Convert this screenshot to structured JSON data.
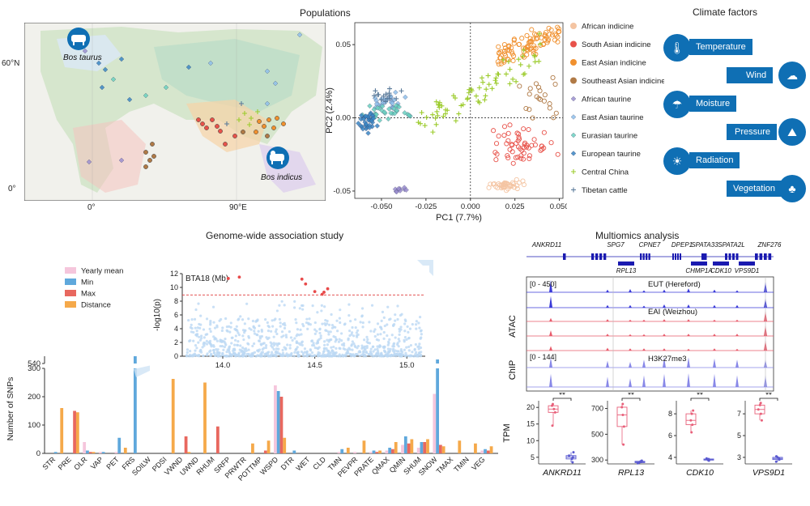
{
  "titles": {
    "populations": "Populations",
    "climate": "Climate factors",
    "gwas": "Genome-wide association study",
    "multiomics": "Multiomics analysis"
  },
  "map": {
    "lat_labels": [
      "60°N",
      "0°"
    ],
    "lon_labels": [
      "0°",
      "90°E"
    ],
    "taurus_label": "Bos taurus",
    "indicus_label": "Bos indicus",
    "taurus_icon": "taurine-cattle-icon",
    "indicus_icon": "zebu-cattle-icon"
  },
  "climate": {
    "items": [
      {
        "label": "Temperature",
        "icon": "thermometer-icon"
      },
      {
        "label": "Wind",
        "icon": "wind-cloud-icon"
      },
      {
        "label": "Moisture",
        "icon": "rain-cloud-icon"
      },
      {
        "label": "Pressure",
        "icon": "mountain-icon"
      },
      {
        "label": "Radiation",
        "icon": "sun-icon"
      },
      {
        "label": "Vegetation",
        "icon": "tree-icon"
      }
    ],
    "color": "#0f6fb4"
  },
  "chart_data": [
    {
      "type": "scatter",
      "name": "pca",
      "xlabel": "PC1 (7.7%)",
      "ylabel": "PC2 (2.4%)",
      "xlim": [
        -0.065,
        0.052
      ],
      "ylim": [
        -0.055,
        0.065
      ],
      "xticks": [
        "-0.050",
        "-0.025",
        "0.000",
        "0.025",
        "0.050"
      ],
      "yticks": [
        "-0.05",
        "0.00",
        "0.05"
      ],
      "legend": [
        {
          "name": "African indicine",
          "color": "#f4c4a2",
          "marker": "circle"
        },
        {
          "name": "South Asian indicine",
          "color": "#e8524a",
          "marker": "circle"
        },
        {
          "name": "East Asian indicine",
          "color": "#f0902e",
          "marker": "circle"
        },
        {
          "name": "Southeast Asian indicine",
          "color": "#b07a46",
          "marker": "circle"
        },
        {
          "name": "African taurine",
          "color": "#9b8fd0",
          "marker": "diamond"
        },
        {
          "name": "East Asian taurine",
          "color": "#8fc0ec",
          "marker": "diamond"
        },
        {
          "name": "Eurasian taurine",
          "color": "#6ad1c0",
          "marker": "diamond"
        },
        {
          "name": "European taurine",
          "color": "#3a86c4",
          "marker": "diamond"
        },
        {
          "name": "Central China",
          "color": "#9ccb2c",
          "marker": "plus"
        },
        {
          "name": "Tibetan cattle",
          "color": "#5a7a9a",
          "marker": "plus"
        }
      ],
      "clusters": [
        {
          "series": "African indicine",
          "cx": 0.022,
          "cy": -0.046,
          "sx": 0.005,
          "sy": 0.0015,
          "n": 40
        },
        {
          "series": "South Asian indicine",
          "cx": 0.03,
          "cy": -0.018,
          "sx": 0.008,
          "sy": 0.006,
          "n": 55
        },
        {
          "series": "East Asian indicine",
          "cx": 0.036,
          "cy": 0.052,
          "sx": 0.009,
          "sy": 0.007,
          "n": 90
        },
        {
          "series": "Southeast Asian indicine",
          "cx": 0.038,
          "cy": 0.015,
          "sx": 0.005,
          "sy": 0.008,
          "n": 20
        },
        {
          "series": "African taurine",
          "cx": -0.04,
          "cy": -0.049,
          "sx": 0.002,
          "sy": 0.001,
          "n": 10
        },
        {
          "series": "East Asian taurine",
          "cx": -0.045,
          "cy": 0.012,
          "sx": 0.005,
          "sy": 0.003,
          "n": 25
        },
        {
          "series": "Eurasian taurine",
          "cx": -0.045,
          "cy": 0.003,
          "sx": 0.006,
          "sy": 0.003,
          "n": 30
        },
        {
          "series": "European taurine",
          "cx": -0.058,
          "cy": -0.003,
          "sx": 0.003,
          "sy": 0.004,
          "n": 35
        },
        {
          "series": "Central China",
          "cx": 0.005,
          "cy": 0.03,
          "sx": 0.012,
          "sy": 0.01,
          "n": 70
        },
        {
          "series": "Tibetan cattle",
          "cx": -0.048,
          "cy": 0.015,
          "sx": 0.004,
          "sy": 0.003,
          "n": 15
        }
      ]
    },
    {
      "type": "bar",
      "name": "gwas_snps",
      "ylabel": "Number of SNPs",
      "yticks": [
        0,
        100,
        200,
        300,
        540,
        600
      ],
      "categories": [
        "STR",
        "PRE",
        "OLR",
        "VAP",
        "PET",
        "FRS",
        "SOILW",
        "PDSI",
        "VWND",
        "UWND",
        "RHUM",
        "SRFP",
        "PRWTR",
        "POTTMP",
        "WSPD",
        "DTR",
        "WET",
        "CLD",
        "TMN",
        "PEVPR",
        "PRATE",
        "QMAX",
        "QMIN",
        "SHUM",
        "SNOW",
        "TMAX",
        "TMIN",
        "VEG"
      ],
      "series": [
        {
          "name": "Yearly mean",
          "color": "#f5c6dc",
          "values": [
            0,
            0,
            40,
            5,
            5,
            0,
            0,
            0,
            0,
            0,
            0,
            0,
            0,
            0,
            240,
            0,
            0,
            0,
            5,
            5,
            5,
            10,
            30,
            20,
            210,
            0,
            0,
            10
          ]
        },
        {
          "name": "Min",
          "color": "#5fa8dc",
          "values": [
            5,
            0,
            10,
            5,
            55,
            575,
            0,
            0,
            0,
            0,
            0,
            0,
            0,
            0,
            220,
            10,
            0,
            0,
            15,
            0,
            10,
            20,
            60,
            40,
            555,
            0,
            0,
            15
          ]
        },
        {
          "name": "Max",
          "color": "#e8685f",
          "values": [
            0,
            150,
            5,
            0,
            0,
            0,
            0,
            0,
            60,
            0,
            95,
            0,
            0,
            10,
            200,
            0,
            0,
            0,
            0,
            0,
            5,
            15,
            35,
            40,
            30,
            0,
            0,
            10
          ]
        },
        {
          "name": "Distance",
          "color": "#f5a94a",
          "values": [
            160,
            145,
            5,
            0,
            20,
            0,
            0,
            285,
            5,
            250,
            0,
            0,
            35,
            45,
            55,
            0,
            0,
            0,
            20,
            45,
            10,
            40,
            50,
            50,
            25,
            45,
            35,
            25
          ]
        }
      ]
    },
    {
      "type": "scatter",
      "name": "manhattan",
      "title": "BTA18 (Mb)",
      "ylabel": "-log10(p)",
      "xlim": [
        13.78,
        15.1
      ],
      "ylim": [
        0,
        12
      ],
      "xticks": [
        "14.0",
        "14.5",
        "15.0"
      ],
      "yticks": [
        "0",
        "2",
        "4",
        "6",
        "8",
        "10",
        "12"
      ],
      "threshold": 8.9,
      "significant": [
        [
          14.03,
          11.3
        ],
        [
          14.09,
          11.5
        ],
        [
          14.43,
          11.2
        ],
        [
          14.45,
          10.5
        ],
        [
          14.5,
          9.4
        ],
        [
          14.54,
          9.0
        ],
        [
          14.55,
          9.3
        ],
        [
          14.57,
          9.8
        ]
      ]
    },
    {
      "type": "box",
      "name": "tpm",
      "ylabel": "TPM",
      "panels": [
        {
          "gene": "ANKRD11",
          "yticks": [
            "5",
            "10",
            "15",
            "20"
          ],
          "ylim": [
            3,
            22
          ],
          "hi": [
            14.5,
            18.5,
            19.5,
            20.5,
            21
          ],
          "lo": [
            3.5,
            4.5,
            5,
            5.5,
            6.5
          ],
          "sig": "**"
        },
        {
          "gene": "RPL13",
          "yticks": [
            "300",
            "500",
            "700"
          ],
          "ylim": [
            270,
            760
          ],
          "hi": [
            420,
            560,
            650,
            710,
            735
          ],
          "lo": [
            275,
            280,
            285,
            290,
            295
          ],
          "sig": "**"
        },
        {
          "gene": "CDK10",
          "yticks": [
            "4",
            "6",
            "8"
          ],
          "ylim": [
            3.4,
            9.2
          ],
          "hi": [
            6.3,
            7,
            7.4,
            8,
            8.3
          ],
          "lo": [
            3.7,
            3.75,
            3.8,
            3.85,
            3.9
          ],
          "sig": "**"
        },
        {
          "gene": "VPS9D1",
          "yticks": [
            "3",
            "5",
            "7"
          ],
          "ylim": [
            2.4,
            8.2
          ],
          "hi": [
            6.4,
            7,
            7.4,
            7.8,
            8.0
          ],
          "lo": [
            2.6,
            2.8,
            2.9,
            3.0,
            3.1
          ],
          "sig": "**"
        }
      ],
      "colors": {
        "hi": "#e8607a",
        "lo": "#5a5ad0"
      }
    }
  ],
  "tracks": {
    "genes_top": [
      "ANKRD11",
      "SPG7",
      "CPNE7",
      "DPEP1",
      "SPATA33",
      "SPATA2L",
      "ZNF276"
    ],
    "genes_bottom": [
      "RPL13",
      "CHMP1A",
      "CDK10",
      "VPS9D1"
    ],
    "atac_label": "ATAC",
    "chip_label": "ChIP",
    "atac_range": "[0 - 450]",
    "chip_range": "[0 - 144]",
    "track_eut": "EUT (Hereford)",
    "track_eai": "EAI (Weizhou)",
    "track_chip": "H3K27me3",
    "colors": {
      "eut": "#3a3ad8",
      "eai": "#e85a6a",
      "chip": "#8888e8"
    }
  }
}
